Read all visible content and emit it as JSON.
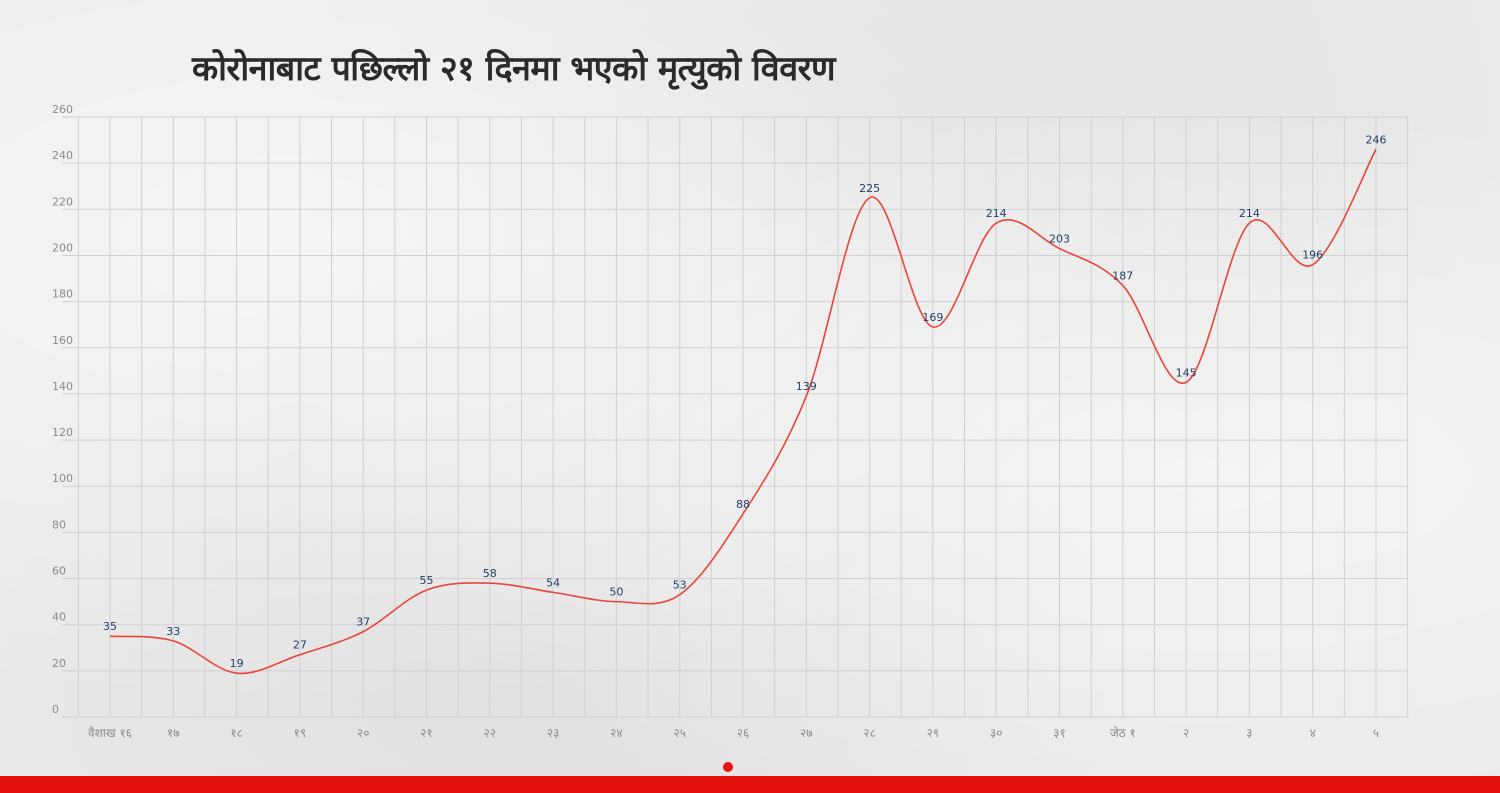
{
  "colors": {
    "line": "#e8463a",
    "accent": "#e3120b",
    "grid": "#cfcfcf",
    "data_label": "#1f3f66",
    "tick": "#8a8a8a"
  },
  "chart_data": {
    "type": "line",
    "title": "कोरोनाबाट पछिल्लो २१ दिनमा भएको मृत्युको विवरण",
    "xlabel": "",
    "ylabel": "",
    "categories": [
      "वैशाख १६",
      "१७",
      "१८",
      "१९",
      "२०",
      "२१",
      "२२",
      "२३",
      "२४",
      "२५",
      "२६",
      "२७",
      "२८",
      "२९",
      "३०",
      "३१",
      "जेठ १",
      "२",
      "३",
      "४",
      "५"
    ],
    "series": [
      {
        "values": [
          35,
          33,
          19,
          27,
          37,
          55,
          58,
          54,
          50,
          53,
          88,
          139,
          225,
          169,
          214,
          203,
          187,
          145,
          214,
          196,
          246
        ]
      }
    ],
    "ylim": [
      0,
      260
    ],
    "yticks": [
      0,
      20,
      40,
      60,
      80,
      100,
      120,
      140,
      160,
      180,
      200,
      220,
      240,
      260
    ],
    "grid": true,
    "smooth": true,
    "data_labels": true
  }
}
